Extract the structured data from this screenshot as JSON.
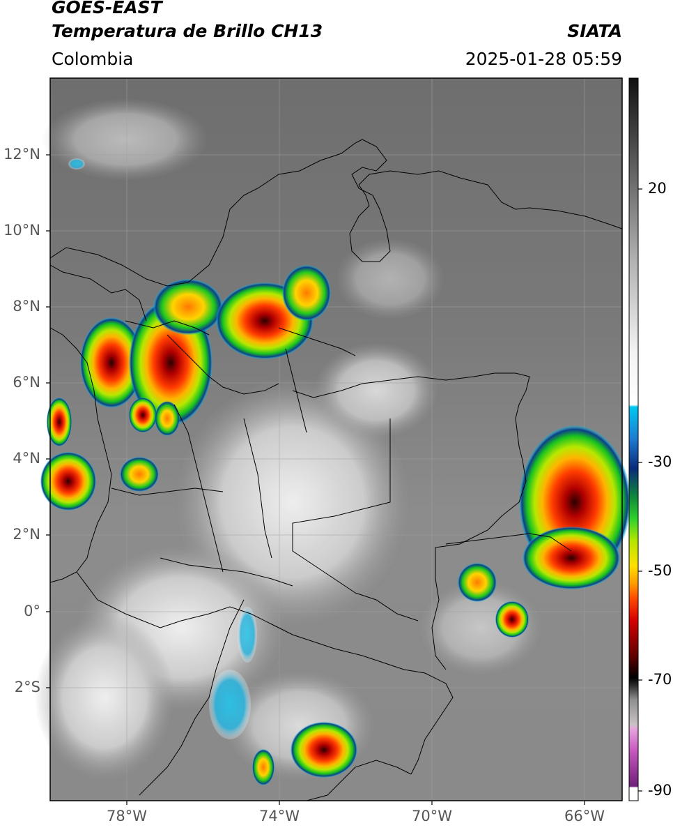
{
  "header": {
    "line1": "GOES-EAST",
    "line2": "Temperatura de Brillo CH13",
    "agency": "SIATA",
    "region": "Colombia",
    "datetime": "2025-01-28 05:59"
  },
  "axes": {
    "lat_ticks": [
      "12°N",
      "10°N",
      "8°N",
      "6°N",
      "4°N",
      "2°N",
      "0°",
      "2°S"
    ],
    "lon_ticks": [
      "78°W",
      "74°W",
      "70°W",
      "66°W"
    ]
  },
  "colorbar": {
    "ticks": [
      "20",
      "-30",
      "-50",
      "-70",
      "-90"
    ],
    "colors": [
      "#ffffff",
      "#7b1f7e",
      "#d95fc4",
      "#e6c3d6",
      "#9c9c9c",
      "#4a4a4a",
      "#000000",
      "#6b0000",
      "#d40000",
      "#ff7a00",
      "#ffd400",
      "#b7e800",
      "#1ec81e",
      "#0b6b3a",
      "#00257a",
      "#1e6fd0",
      "#00c8f0",
      "#ffffff",
      "#a8a8a8",
      "#2e2e2e",
      "#000000"
    ]
  }
}
